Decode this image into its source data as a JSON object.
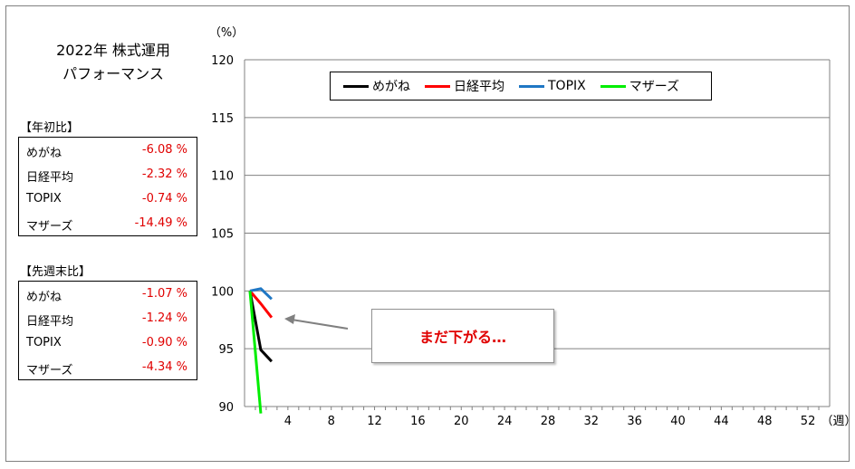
{
  "title_line1": "2022年 株式運用",
  "title_line2": "パフォーマンス",
  "ytd": {
    "header": "【年初比】",
    "rows": [
      {
        "name": "めがね",
        "value": "-6.08 %"
      },
      {
        "name": "日経平均",
        "value": "-2.32 %"
      },
      {
        "name": "TOPIX",
        "value": "-0.74 %"
      },
      {
        "name": "マザーズ",
        "value": "-14.49 %"
      }
    ]
  },
  "weekly": {
    "header": "【先週末比】",
    "rows": [
      {
        "name": "めがね",
        "value": "-1.07 %"
      },
      {
        "name": "日経平均",
        "value": "-1.24 %"
      },
      {
        "name": "TOPIX",
        "value": "-0.90 %"
      },
      {
        "name": "マザーズ",
        "value": "-4.34 %"
      }
    ]
  },
  "callout": "まだ下がる…",
  "chart_data": {
    "type": "line",
    "title": "",
    "ylabel": "（%）",
    "xlabel": "（週）",
    "ylim": [
      90,
      120
    ],
    "xlim": [
      0,
      54
    ],
    "yticks": [
      90,
      95,
      100,
      105,
      110,
      115,
      120
    ],
    "xticks": [
      4,
      8,
      12,
      16,
      20,
      24,
      28,
      32,
      36,
      40,
      44,
      48,
      52
    ],
    "grid": true,
    "legend_position": "top",
    "series": [
      {
        "name": "めがね",
        "color": "#000000",
        "x": [
          0.5,
          1.5,
          2.5
        ],
        "y": [
          100,
          94.9,
          93.9
        ]
      },
      {
        "name": "日経平均",
        "color": "#ff0000",
        "x": [
          0.5,
          1.5,
          2.5
        ],
        "y": [
          100,
          98.9,
          97.7
        ]
      },
      {
        "name": "TOPIX",
        "color": "#1f77c4",
        "x": [
          0.5,
          1.5,
          2.5
        ],
        "y": [
          100,
          100.2,
          99.3
        ]
      },
      {
        "name": "マザーズ",
        "color": "#00ee00",
        "x": [
          0.5,
          1.5
        ],
        "y": [
          100,
          89.4
        ]
      }
    ]
  }
}
